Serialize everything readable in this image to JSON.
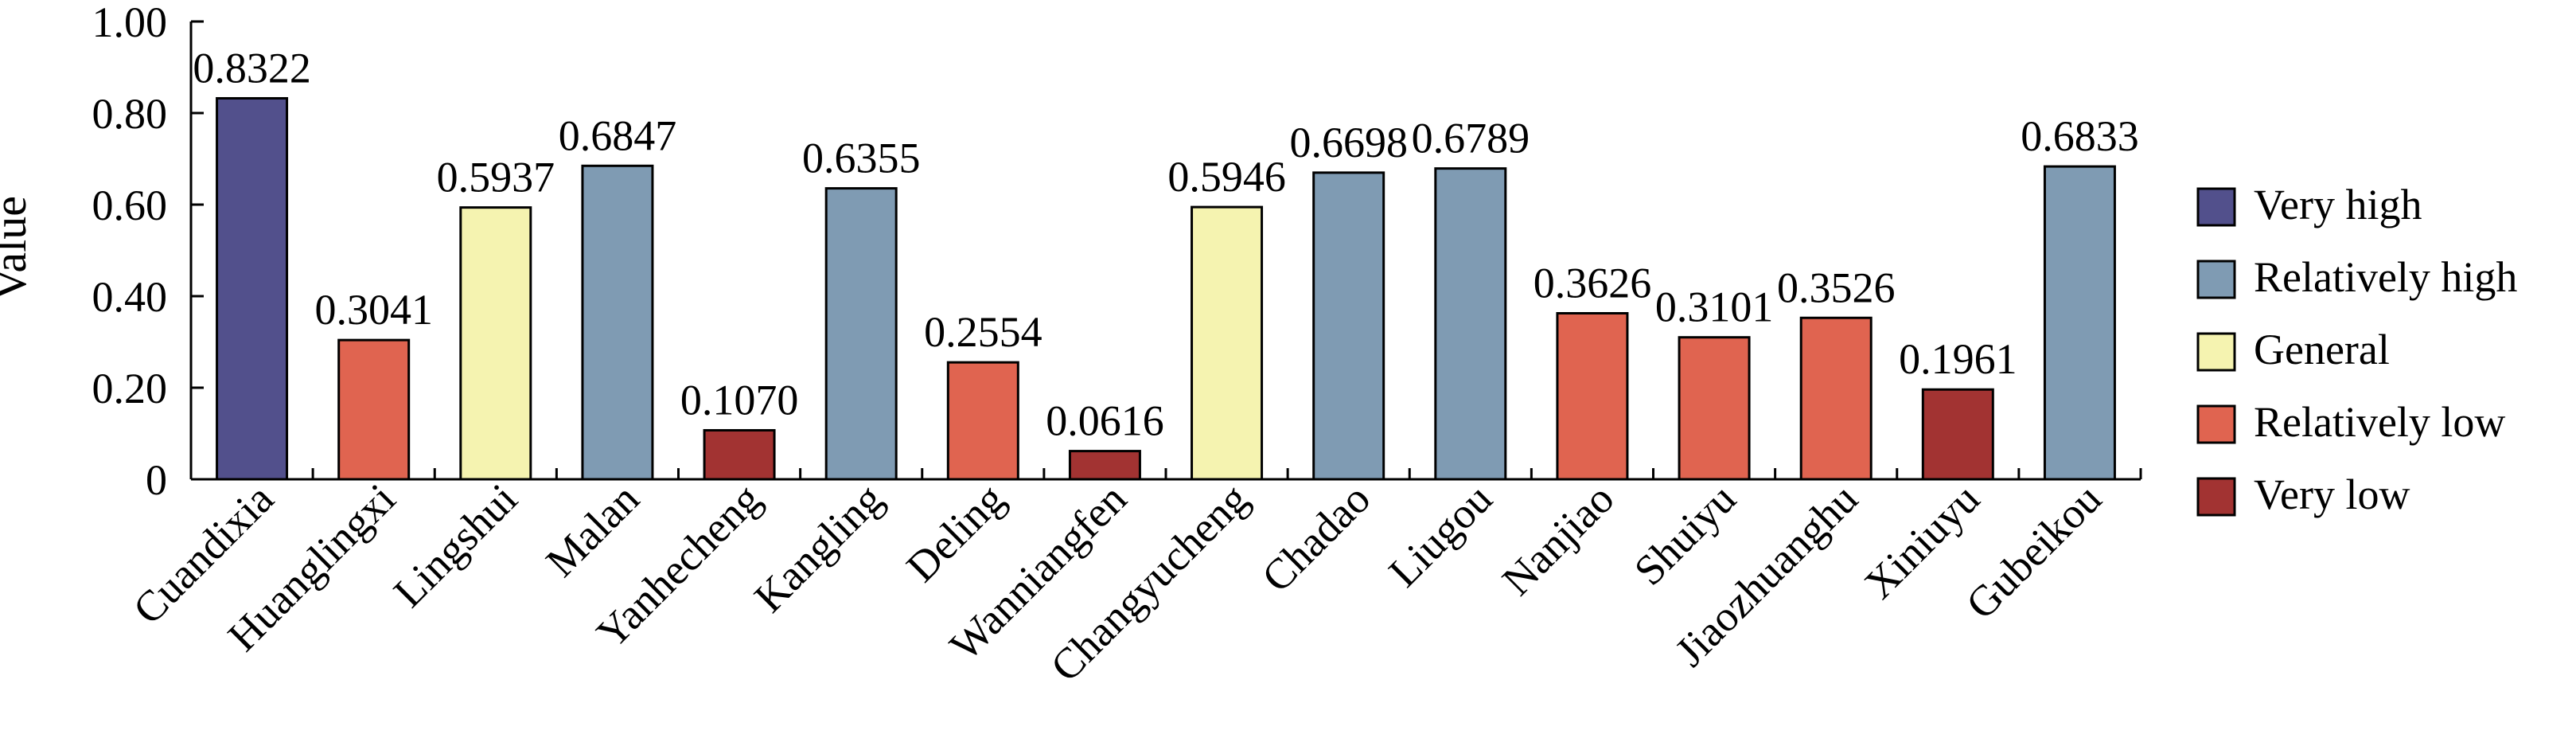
{
  "chart_data": {
    "type": "bar",
    "ylabel": "Value",
    "ylim": [
      0,
      1.0
    ],
    "yticks": [
      "0",
      "0.20",
      "0.40",
      "0.60",
      "0.80",
      "1.00"
    ],
    "categories": [
      "Cuandixia",
      "Huanglingxi",
      "Lingshui",
      "Malan",
      "Yanhecheng",
      "Kangling",
      "Deling",
      "Wanniangfen",
      "Changyucheng",
      "Chadao",
      "Liugou",
      "Nanjiao",
      "Shuiyu",
      "Jiaozhuanghu",
      "Xiniuyu",
      "Gubeikou"
    ],
    "values": [
      0.8322,
      0.3041,
      0.5937,
      0.6847,
      0.107,
      0.6355,
      0.2554,
      0.0616,
      0.5946,
      0.6698,
      0.6789,
      0.3626,
      0.3101,
      0.3526,
      0.1961,
      0.6833
    ],
    "value_labels": [
      "0.8322",
      "0.3041",
      "0.5937",
      "0.6847",
      "0.1070",
      "0.6355",
      "0.2554",
      "0.0616",
      "0.5946",
      "0.6698",
      "0.6789",
      "0.3626",
      "0.3101",
      "0.3526",
      "0.1961",
      "0.6833"
    ],
    "classes": [
      "Very high",
      "Relatively low",
      "General",
      "Relatively high",
      "Very low",
      "Relatively high",
      "Relatively low",
      "Very low",
      "General",
      "Relatively high",
      "Relatively high",
      "Relatively low",
      "Relatively low",
      "Relatively low",
      "Very low",
      "Relatively high"
    ],
    "legend": [
      {
        "label": "Very high",
        "color": "#52508c"
      },
      {
        "label": "Relatively high",
        "color": "#7f9bb3"
      },
      {
        "label": "General",
        "color": "#f5f3b0"
      },
      {
        "label": "Relatively low",
        "color": "#e06450"
      },
      {
        "label": "Very low",
        "color": "#a23332"
      }
    ],
    "legend_position": "right",
    "grid": false
  }
}
